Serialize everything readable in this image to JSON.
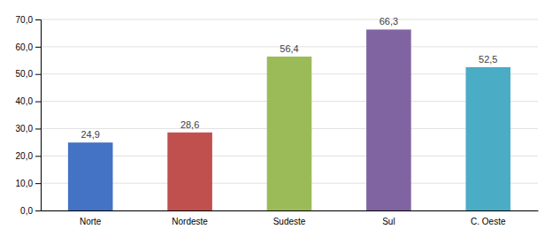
{
  "chart_data": {
    "type": "bar",
    "categories": [
      "Norte",
      "Nordeste",
      "Sudeste",
      "Sul",
      "C. Oeste"
    ],
    "values": [
      24.9,
      28.6,
      56.4,
      66.3,
      52.5
    ],
    "value_labels": [
      "24,9",
      "28,6",
      "56,4",
      "66,3",
      "52,5"
    ],
    "colors": [
      "#4472c4",
      "#c0504d",
      "#9bbb59",
      "#8064a2",
      "#4bacc6"
    ],
    "ylim": [
      0,
      70
    ],
    "yticks": [
      {
        "value": 0,
        "label": "0,0"
      },
      {
        "value": 10,
        "label": "10,0"
      },
      {
        "value": 20,
        "label": "20,0"
      },
      {
        "value": 30,
        "label": "30,0"
      },
      {
        "value": 40,
        "label": "40,0"
      },
      {
        "value": 50,
        "label": "50,0"
      },
      {
        "value": 60,
        "label": "60,0"
      },
      {
        "value": 70,
        "label": "70,0"
      }
    ],
    "grid": true
  }
}
